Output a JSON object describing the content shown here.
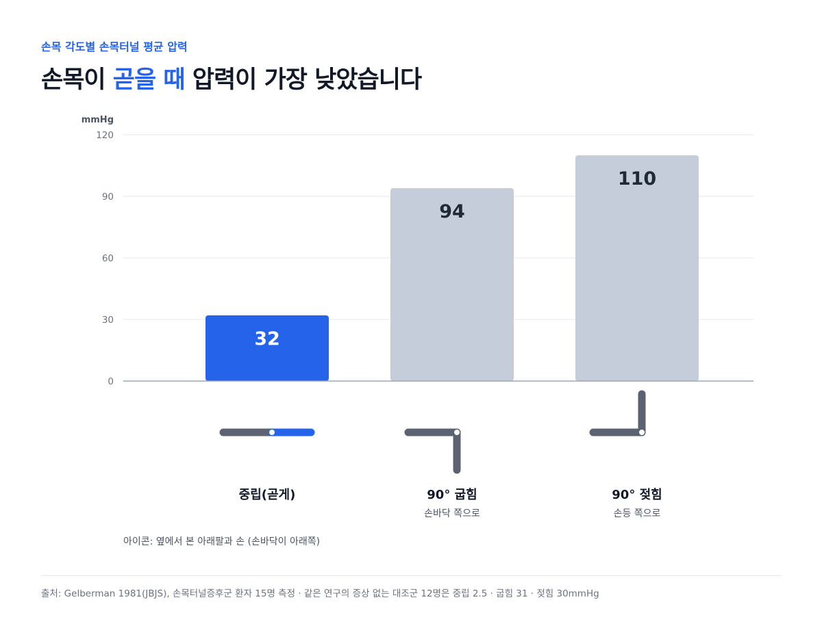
{
  "header": {
    "eyebrow": "손목 각도별 손목터널 평균 압력",
    "headline_pre": "손목이 ",
    "headline_highlight": "곧을 때",
    "headline_post": " 압력이 가장 낮았습니다"
  },
  "chart_data": {
    "type": "bar",
    "ylabel": "mmHg",
    "ylim": [
      0,
      120
    ],
    "yticks": [
      0,
      30,
      60,
      90,
      120
    ],
    "grid": true,
    "categories": [
      "중립(곧게)",
      "90° 굽힘",
      "90° 젖힘"
    ],
    "subtitles": [
      "",
      "손바닥 쪽으로",
      "손등 쪽으로"
    ],
    "values": [
      32,
      94,
      110
    ],
    "data_labels": [
      "32",
      "94",
      "110"
    ],
    "icons": [
      "wrist-neutral-icon",
      "wrist-flexion-icon",
      "wrist-extension-icon"
    ],
    "colors": {
      "highlight": "#2563eb",
      "bar": "#c4cdd9",
      "icon_arm": "#5b6270",
      "grid": "#e5e7eb",
      "axis": "#9aa7b8",
      "tick_text": "#6b7280"
    }
  },
  "footer": {
    "icon_note": "아이콘: 옆에서 본 아래팔과 손 (손바닥이 아래쪽)",
    "source": "출처: Gelberman 1981(JBJS), 손목터널증후군 환자 15명 측정 · 같은 연구의 증상 없는 대조군 12명은 중립 2.5 · 굽힘 31 · 젖힘 30mmHg"
  }
}
